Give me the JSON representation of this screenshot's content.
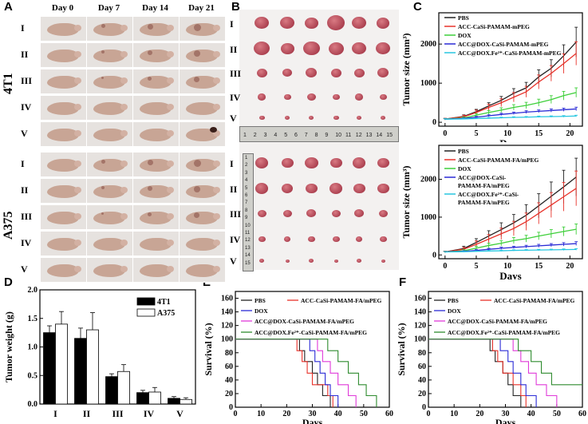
{
  "panels": {
    "A": "A",
    "B": "B",
    "C": "C",
    "D": "D",
    "E": "E",
    "F": "F"
  },
  "panelA": {
    "days": [
      "Day 0",
      "Day 7",
      "Day 14",
      "Day 21"
    ],
    "groups": [
      "I",
      "II",
      "III",
      "IV",
      "V"
    ],
    "cells": [
      "4T1",
      "A375"
    ]
  },
  "panelB": {
    "groups": [
      "I",
      "II",
      "III",
      "IV",
      "V"
    ],
    "ruler_top": [
      "1",
      "2",
      "3",
      "4",
      "5",
      "6",
      "7",
      "8",
      "9",
      "10",
      "11",
      "12",
      "13",
      "14",
      "15"
    ],
    "ruler_side": [
      "1",
      "2",
      "3",
      "4",
      "5",
      "6",
      "7",
      "8",
      "9",
      "10",
      "11",
      "12",
      "13",
      "14",
      "15"
    ]
  },
  "colors": {
    "pbs": "#222222",
    "casi": "#e8322a",
    "dox": "#3ecf3a",
    "acc": "#2b2bd6",
    "fe": "#27c6e0",
    "mag": "#e03ad9",
    "olive": "#2e8b2e"
  },
  "chart_data": [
    {
      "id": "C-top",
      "type": "line",
      "xlabel": "Days",
      "ylabel": "Tumor size (mm³)",
      "xlim": [
        -1,
        22
      ],
      "ylim": [
        -100,
        2800
      ],
      "xticks": [
        0,
        5,
        10,
        15,
        20
      ],
      "yticks": [
        0,
        1000,
        2000
      ],
      "x": [
        0,
        3,
        5,
        7,
        9,
        11,
        13,
        15,
        17,
        19,
        21
      ],
      "series": [
        {
          "name": "PBS",
          "color": "#222222",
          "values": [
            80,
            150,
            270,
            420,
            560,
            740,
            880,
            1160,
            1380,
            1700,
            2050
          ],
          "err": [
            20,
            40,
            60,
            80,
            100,
            120,
            140,
            180,
            220,
            280,
            380
          ]
        },
        {
          "name": "ACC-CaSi-PAMAM-mPEG",
          "color": "#e8322a",
          "values": [
            80,
            140,
            250,
            380,
            500,
            640,
            780,
            1030,
            1250,
            1500,
            1760
          ],
          "err": [
            20,
            40,
            60,
            80,
            100,
            120,
            140,
            180,
            200,
            250,
            300
          ]
        },
        {
          "name": "DOX",
          "color": "#3ecf3a",
          "values": [
            80,
            110,
            180,
            250,
            310,
            380,
            430,
            500,
            580,
            680,
            760
          ],
          "err": [
            15,
            25,
            40,
            50,
            60,
            70,
            80,
            90,
            100,
            110,
            120
          ]
        },
        {
          "name": "ACC@DOX-CaSi-PAMAM-mPEG",
          "color": "#2b2bd6",
          "values": [
            80,
            95,
            130,
            165,
            200,
            230,
            260,
            280,
            300,
            320,
            340
          ],
          "err": [
            10,
            15,
            20,
            25,
            30,
            30,
            35,
            35,
            40,
            40,
            45
          ]
        },
        {
          "name": "ACC@DOX.Fe²⁺-CaSi-PAMAM-mPEG",
          "color": "#27c6e0",
          "values": [
            80,
            85,
            95,
            105,
            115,
            125,
            130,
            140,
            145,
            150,
            160
          ],
          "err": [
            8,
            10,
            12,
            14,
            15,
            16,
            17,
            18,
            18,
            20,
            20
          ]
        }
      ]
    },
    {
      "id": "C-bottom",
      "type": "line",
      "xlabel": "Days",
      "ylabel": "Tumor size (mm³)",
      "xlim": [
        -1,
        22
      ],
      "ylim": [
        -100,
        2900
      ],
      "xticks": [
        0,
        5,
        10,
        15,
        20
      ],
      "yticks": [
        0,
        1000,
        2000
      ],
      "x": [
        0,
        3,
        5,
        7,
        9,
        11,
        13,
        15,
        17,
        19,
        21
      ],
      "series": [
        {
          "name": "PBS",
          "color": "#222222",
          "values": [
            80,
            170,
            330,
            500,
            670,
            850,
            1050,
            1300,
            1550,
            1800,
            2060
          ],
          "err": [
            20,
            60,
            100,
            140,
            180,
            220,
            280,
            320,
            380,
            440,
            500
          ]
        },
        {
          "name": "ACC-CaSi-PAMAM-FA/mPEG",
          "color": "#e8322a",
          "values": [
            80,
            150,
            280,
            420,
            560,
            700,
            880,
            1100,
            1320,
            1540,
            1760
          ],
          "err": [
            20,
            50,
            90,
            120,
            150,
            190,
            230,
            280,
            330,
            380,
            460
          ]
        },
        {
          "name": "DOX",
          "color": "#3ecf3a",
          "values": [
            80,
            110,
            180,
            250,
            310,
            380,
            430,
            500,
            560,
            620,
            680
          ],
          "err": [
            15,
            30,
            50,
            60,
            70,
            80,
            90,
            100,
            110,
            120,
            140
          ]
        },
        {
          "name": "ACC@DOX-CaSi-PAMAM-FA/mPEG",
          "color": "#2b2bd6",
          "values": [
            80,
            95,
            120,
            150,
            175,
            200,
            220,
            240,
            260,
            280,
            300
          ],
          "err": [
            10,
            15,
            20,
            25,
            30,
            30,
            35,
            40,
            40,
            45,
            50
          ]
        },
        {
          "name": "ACC@DOX.Fe²⁺-CaSi-PAMAM-FA/mPEG",
          "color": "#27c6e0",
          "values": [
            80,
            85,
            95,
            105,
            110,
            120,
            125,
            130,
            135,
            140,
            145
          ],
          "err": [
            8,
            10,
            12,
            14,
            15,
            16,
            17,
            18,
            18,
            20,
            20
          ]
        }
      ],
      "legend_lines": [
        [
          "PBS"
        ],
        [
          "ACC-CaSi-PAMAM-FA/mPEG"
        ],
        [
          "DOX"
        ],
        [
          "ACC@DOX-CaSi-",
          "PAMAM-FA/mPEG"
        ],
        [
          "ACC@DOX.Fe²⁺-CaSi-",
          "PAMAM-FA/mPEG"
        ]
      ]
    },
    {
      "id": "D",
      "type": "bar",
      "ylabel": "Tumor weight (g)",
      "categories": [
        "I",
        "II",
        "III",
        "IV",
        "V"
      ],
      "ylim": [
        0,
        2.0
      ],
      "yticks": [
        0.0,
        0.5,
        1.0,
        1.5,
        2.0
      ],
      "series": [
        {
          "name": "4T1",
          "fill": "#000000",
          "values": [
            1.25,
            1.15,
            0.48,
            0.2,
            0.1
          ],
          "err": [
            0.12,
            0.18,
            0.05,
            0.04,
            0.03
          ]
        },
        {
          "name": "A375",
          "fill": "#ffffff",
          "values": [
            1.4,
            1.3,
            0.57,
            0.21,
            0.08
          ],
          "err": [
            0.22,
            0.3,
            0.12,
            0.08,
            0.03
          ]
        }
      ]
    },
    {
      "id": "E",
      "type": "line",
      "xlabel": "Days",
      "ylabel": "Survival (%)",
      "xlim": [
        0,
        60
      ],
      "ylim": [
        0,
        170
      ],
      "xticks": [
        0,
        10,
        20,
        30,
        40,
        50,
        60
      ],
      "yticks": [
        0,
        20,
        40,
        60,
        80,
        100,
        120,
        140,
        160
      ],
      "series": [
        {
          "name": "PBS",
          "color": "#222222",
          "steps": [
            [
              0,
              100
            ],
            [
              25,
              100
            ],
            [
              25,
              83
            ],
            [
              27,
              83
            ],
            [
              27,
              67
            ],
            [
              30,
              67
            ],
            [
              30,
              50
            ],
            [
              32,
              50
            ],
            [
              32,
              33
            ],
            [
              34,
              33
            ],
            [
              34,
              17
            ],
            [
              37,
              17
            ],
            [
              37,
              0
            ]
          ]
        },
        {
          "name": "ACC-CaSi-PAMAM-FA/mPEG",
          "color": "#e8322a",
          "steps": [
            [
              0,
              100
            ],
            [
              24,
              100
            ],
            [
              24,
              83
            ],
            [
              26,
              83
            ],
            [
              26,
              67
            ],
            [
              28,
              67
            ],
            [
              28,
              50
            ],
            [
              30,
              50
            ],
            [
              30,
              33
            ],
            [
              36,
              33
            ],
            [
              36,
              17
            ],
            [
              38,
              17
            ],
            [
              38,
              0
            ]
          ]
        },
        {
          "name": "DOX",
          "color": "#2b2bd6",
          "steps": [
            [
              0,
              100
            ],
            [
              29,
              100
            ],
            [
              29,
              83
            ],
            [
              31,
              83
            ],
            [
              31,
              67
            ],
            [
              33,
              67
            ],
            [
              33,
              50
            ],
            [
              35,
              50
            ],
            [
              35,
              33
            ],
            [
              37,
              33
            ],
            [
              37,
              17
            ],
            [
              40,
              17
            ],
            [
              40,
              0
            ]
          ]
        },
        {
          "name": "ACC@DOX-CaSi-PAMAM-FA/mPEG",
          "color": "#e03ad9",
          "steps": [
            [
              0,
              100
            ],
            [
              32,
              100
            ],
            [
              32,
              83
            ],
            [
              34,
              83
            ],
            [
              34,
              67
            ],
            [
              37,
              67
            ],
            [
              37,
              50
            ],
            [
              40,
              50
            ],
            [
              40,
              33
            ],
            [
              44,
              33
            ],
            [
              44,
              17
            ],
            [
              47,
              17
            ],
            [
              47,
              0
            ]
          ]
        },
        {
          "name": "ACC@DOX.Fe²⁺-CaSi-PAMAM-FA/mPEG",
          "color": "#2e8b2e",
          "steps": [
            [
              0,
              100
            ],
            [
              36,
              100
            ],
            [
              36,
              83
            ],
            [
              40,
              83
            ],
            [
              40,
              67
            ],
            [
              44,
              67
            ],
            [
              44,
              50
            ],
            [
              48,
              50
            ],
            [
              48,
              33
            ],
            [
              51,
              33
            ],
            [
              51,
              17
            ],
            [
              55,
              17
            ],
            [
              55,
              0
            ]
          ]
        }
      ]
    },
    {
      "id": "F",
      "type": "line",
      "xlabel": "Days",
      "ylabel": "Survival (%)",
      "xlim": [
        0,
        60
      ],
      "ylim": [
        0,
        170
      ],
      "xticks": [
        0,
        10,
        20,
        30,
        40,
        50,
        60
      ],
      "yticks": [
        0,
        20,
        40,
        60,
        80,
        100,
        120,
        140,
        160
      ],
      "series": [
        {
          "name": "PBS",
          "color": "#222222",
          "steps": [
            [
              0,
              100
            ],
            [
              24,
              100
            ],
            [
              24,
              83
            ],
            [
              26,
              83
            ],
            [
              26,
              67
            ],
            [
              29,
              67
            ],
            [
              29,
              50
            ],
            [
              31,
              50
            ],
            [
              31,
              33
            ],
            [
              33,
              33
            ],
            [
              33,
              17
            ],
            [
              36,
              17
            ],
            [
              36,
              0
            ]
          ]
        },
        {
          "name": "ACC-CaSi-PAMAM-FA/mPEG",
          "color": "#e8322a",
          "steps": [
            [
              0,
              100
            ],
            [
              25,
              100
            ],
            [
              25,
              83
            ],
            [
              27,
              83
            ],
            [
              27,
              67
            ],
            [
              29,
              67
            ],
            [
              29,
              50
            ],
            [
              33,
              50
            ],
            [
              33,
              33
            ],
            [
              36,
              33
            ],
            [
              36,
              17
            ],
            [
              38,
              17
            ],
            [
              38,
              0
            ]
          ]
        },
        {
          "name": "DOX",
          "color": "#2b2bd6",
          "steps": [
            [
              0,
              100
            ],
            [
              28,
              100
            ],
            [
              28,
              83
            ],
            [
              31,
              83
            ],
            [
              31,
              67
            ],
            [
              33,
              67
            ],
            [
              33,
              50
            ],
            [
              36,
              50
            ],
            [
              36,
              33
            ],
            [
              38,
              33
            ],
            [
              38,
              17
            ],
            [
              42,
              17
            ],
            [
              42,
              0
            ]
          ]
        },
        {
          "name": "ACC@DOX-CaSi-PAMAM-FA/mPEG",
          "color": "#e03ad9",
          "steps": [
            [
              0,
              100
            ],
            [
              33,
              100
            ],
            [
              33,
              83
            ],
            [
              36,
              83
            ],
            [
              36,
              67
            ],
            [
              39,
              67
            ],
            [
              39,
              50
            ],
            [
              42,
              50
            ],
            [
              42,
              33
            ],
            [
              46,
              33
            ],
            [
              46,
              17
            ],
            [
              50,
              17
            ],
            [
              50,
              0
            ]
          ]
        },
        {
          "name": "ACC@DOX.Fe²⁺-CaSi-PAMAM-FA/mPEG",
          "color": "#2e8b2e",
          "steps": [
            [
              0,
              100
            ],
            [
              35,
              100
            ],
            [
              35,
              83
            ],
            [
              40,
              83
            ],
            [
              40,
              67
            ],
            [
              44,
              67
            ],
            [
              44,
              50
            ],
            [
              48,
              50
            ],
            [
              48,
              33
            ],
            [
              56,
              33
            ],
            [
              56,
              33
            ],
            [
              60,
              33
            ]
          ]
        }
      ]
    }
  ]
}
